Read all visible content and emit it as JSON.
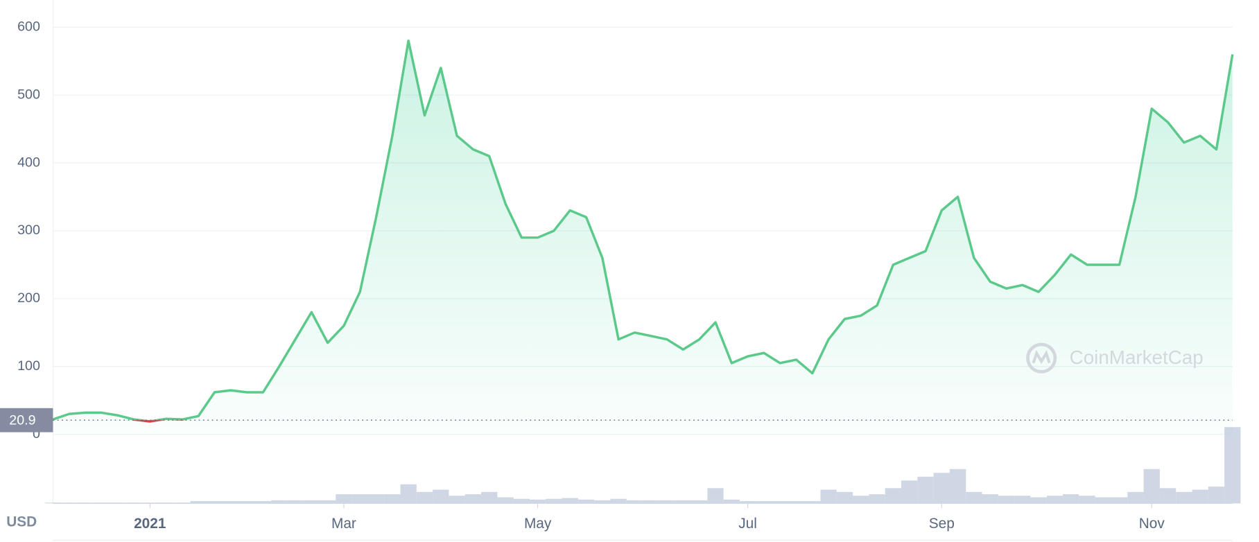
{
  "chart_data": {
    "type": "line",
    "categories": [
      null,
      null,
      null,
      null,
      null,
      null,
      "2021",
      null,
      null,
      null,
      null,
      null,
      null,
      null,
      null,
      null,
      null,
      null,
      "Mar",
      null,
      null,
      null,
      null,
      null,
      null,
      null,
      null,
      null,
      null,
      null,
      "May",
      null,
      null,
      null,
      null,
      null,
      null,
      null,
      null,
      null,
      null,
      null,
      null,
      "Jul",
      null,
      null,
      null,
      null,
      null,
      null,
      null,
      null,
      null,
      null,
      null,
      "Sep",
      null,
      null,
      null,
      null,
      null,
      null,
      null,
      null,
      null,
      null,
      null,
      null,
      "Nov",
      null,
      null,
      null,
      null,
      null
    ],
    "values": [
      22,
      30,
      32,
      32,
      28,
      22,
      19,
      23,
      22,
      27,
      62,
      65,
      62,
      62,
      100,
      140,
      180,
      135,
      160,
      210,
      320,
      440,
      580,
      470,
      540,
      440,
      420,
      410,
      340,
      290,
      290,
      300,
      330,
      320,
      260,
      140,
      150,
      145,
      140,
      125,
      140,
      165,
      105,
      115,
      120,
      105,
      110,
      90,
      140,
      170,
      175,
      190,
      250,
      260,
      270,
      330,
      350,
      260,
      225,
      215,
      220,
      210,
      235,
      265,
      250,
      250,
      250,
      350,
      480,
      460,
      430,
      440,
      420,
      560
    ],
    "color": "#5bc98a",
    "down_color": "#ea3943",
    "ylim": [
      0,
      640
    ],
    "yticks": [
      0,
      100,
      200,
      300,
      400,
      500,
      600
    ],
    "grid": true,
    "reference": {
      "value": 20.9,
      "color": "#858ca2"
    },
    "volume": {
      "values": [
        1,
        1,
        1,
        1,
        1,
        1,
        1,
        1,
        1,
        3,
        3,
        3,
        3,
        3,
        4,
        4,
        4,
        4,
        12,
        12,
        12,
        12,
        25,
        15,
        18,
        10,
        12,
        15,
        8,
        6,
        5,
        6,
        7,
        5,
        4,
        6,
        4,
        4,
        4,
        4,
        4,
        20,
        5,
        3,
        3,
        3,
        3,
        3,
        18,
        15,
        10,
        12,
        20,
        30,
        35,
        40,
        45,
        15,
        12,
        10,
        10,
        8,
        10,
        12,
        10,
        8,
        8,
        15,
        45,
        20,
        15,
        18,
        22,
        100
      ],
      "color": "#cfd6e4",
      "lim": [
        0,
        100
      ]
    },
    "unit_label": "USD",
    "watermark": "CoinMarketCap"
  }
}
